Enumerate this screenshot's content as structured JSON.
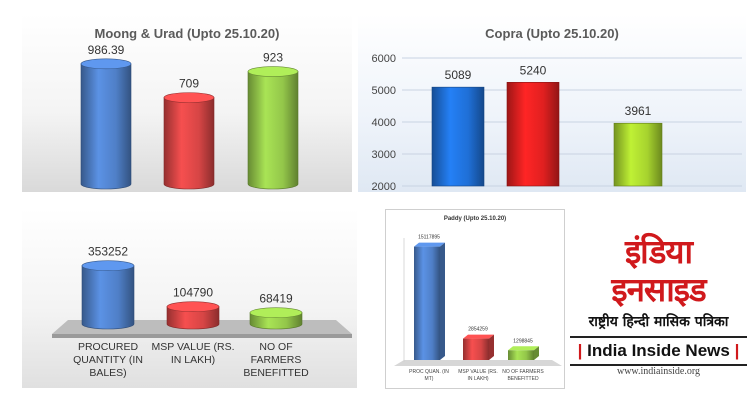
{
  "chart_data": [
    {
      "type": "bar",
      "title": "Moong & Urad (Upto 25.10.20)",
      "categories": [
        "",
        "",
        ""
      ],
      "values": [
        986.39,
        709,
        923
      ],
      "value_labels": [
        "986.39",
        "709",
        "923"
      ],
      "colors": [
        "#4f7fc7",
        "#d64545",
        "#93c64a"
      ],
      "ylim": [
        0,
        1100
      ]
    },
    {
      "type": "bar",
      "title": "Copra (Upto  25.10.20)",
      "categories": [
        "",
        "",
        ""
      ],
      "values": [
        5089,
        5240,
        3961
      ],
      "value_labels": [
        "5089",
        "5240",
        "3961"
      ],
      "colors": [
        "#1f6fd6",
        "#e02020",
        "#a6d22e"
      ],
      "ylim": [
        2000,
        6000
      ],
      "yticks": [
        "6000",
        "5000",
        "4000",
        "3000",
        "2000"
      ],
      "grid": true
    },
    {
      "type": "bar",
      "title": "",
      "categories": [
        "PROCURED QUANTITY (IN BALES)",
        "MSP VALUE (RS. IN LAKH)",
        "NO OF FARMERS BENEFITTED"
      ],
      "category_lines": [
        [
          "PROCURED",
          "QUANTITY (IN",
          "BALES)"
        ],
        [
          "MSP VALUE (RS.",
          "IN LAKH)"
        ],
        [
          "NO OF",
          "FARMERS",
          "BENEFITTED"
        ]
      ],
      "values": [
        353252,
        104790,
        68419
      ],
      "value_labels": [
        "353252",
        "104790",
        "68419"
      ],
      "colors": [
        "#4f7fc7",
        "#d64545",
        "#93c64a"
      ],
      "ylim": [
        0,
        400000
      ]
    },
    {
      "type": "bar",
      "title": "Paddy (Upto 25.10.20)",
      "categories": [
        "PROC QUAN. (IN MT)",
        "MSP VALUE (RS. IN LAKH)",
        "NO OF FARMERS BENEFITTED"
      ],
      "category_lines": [
        [
          "PROC QUAN. (IN",
          "MT)"
        ],
        [
          "MSP VALUE (RS.",
          "IN LAKH)"
        ],
        [
          "NO OF FARMERS",
          "BENEFITTED"
        ]
      ],
      "values": [
        15117895,
        2854259,
        1298845
      ],
      "value_labels": [
        "15117895",
        "2854259",
        "1298845"
      ],
      "colors": [
        "#4f7fc7",
        "#d64545",
        "#93c64a"
      ],
      "ylim": [
        0,
        16000000
      ]
    }
  ],
  "logo": {
    "line1": "इंडिया",
    "line2": "इनसाइड",
    "tagline": "राष्ट्रीय हिन्दी मासिक पत्रिका",
    "name": "India Inside News",
    "pipe": "|",
    "website": "www.indiainside.org"
  }
}
